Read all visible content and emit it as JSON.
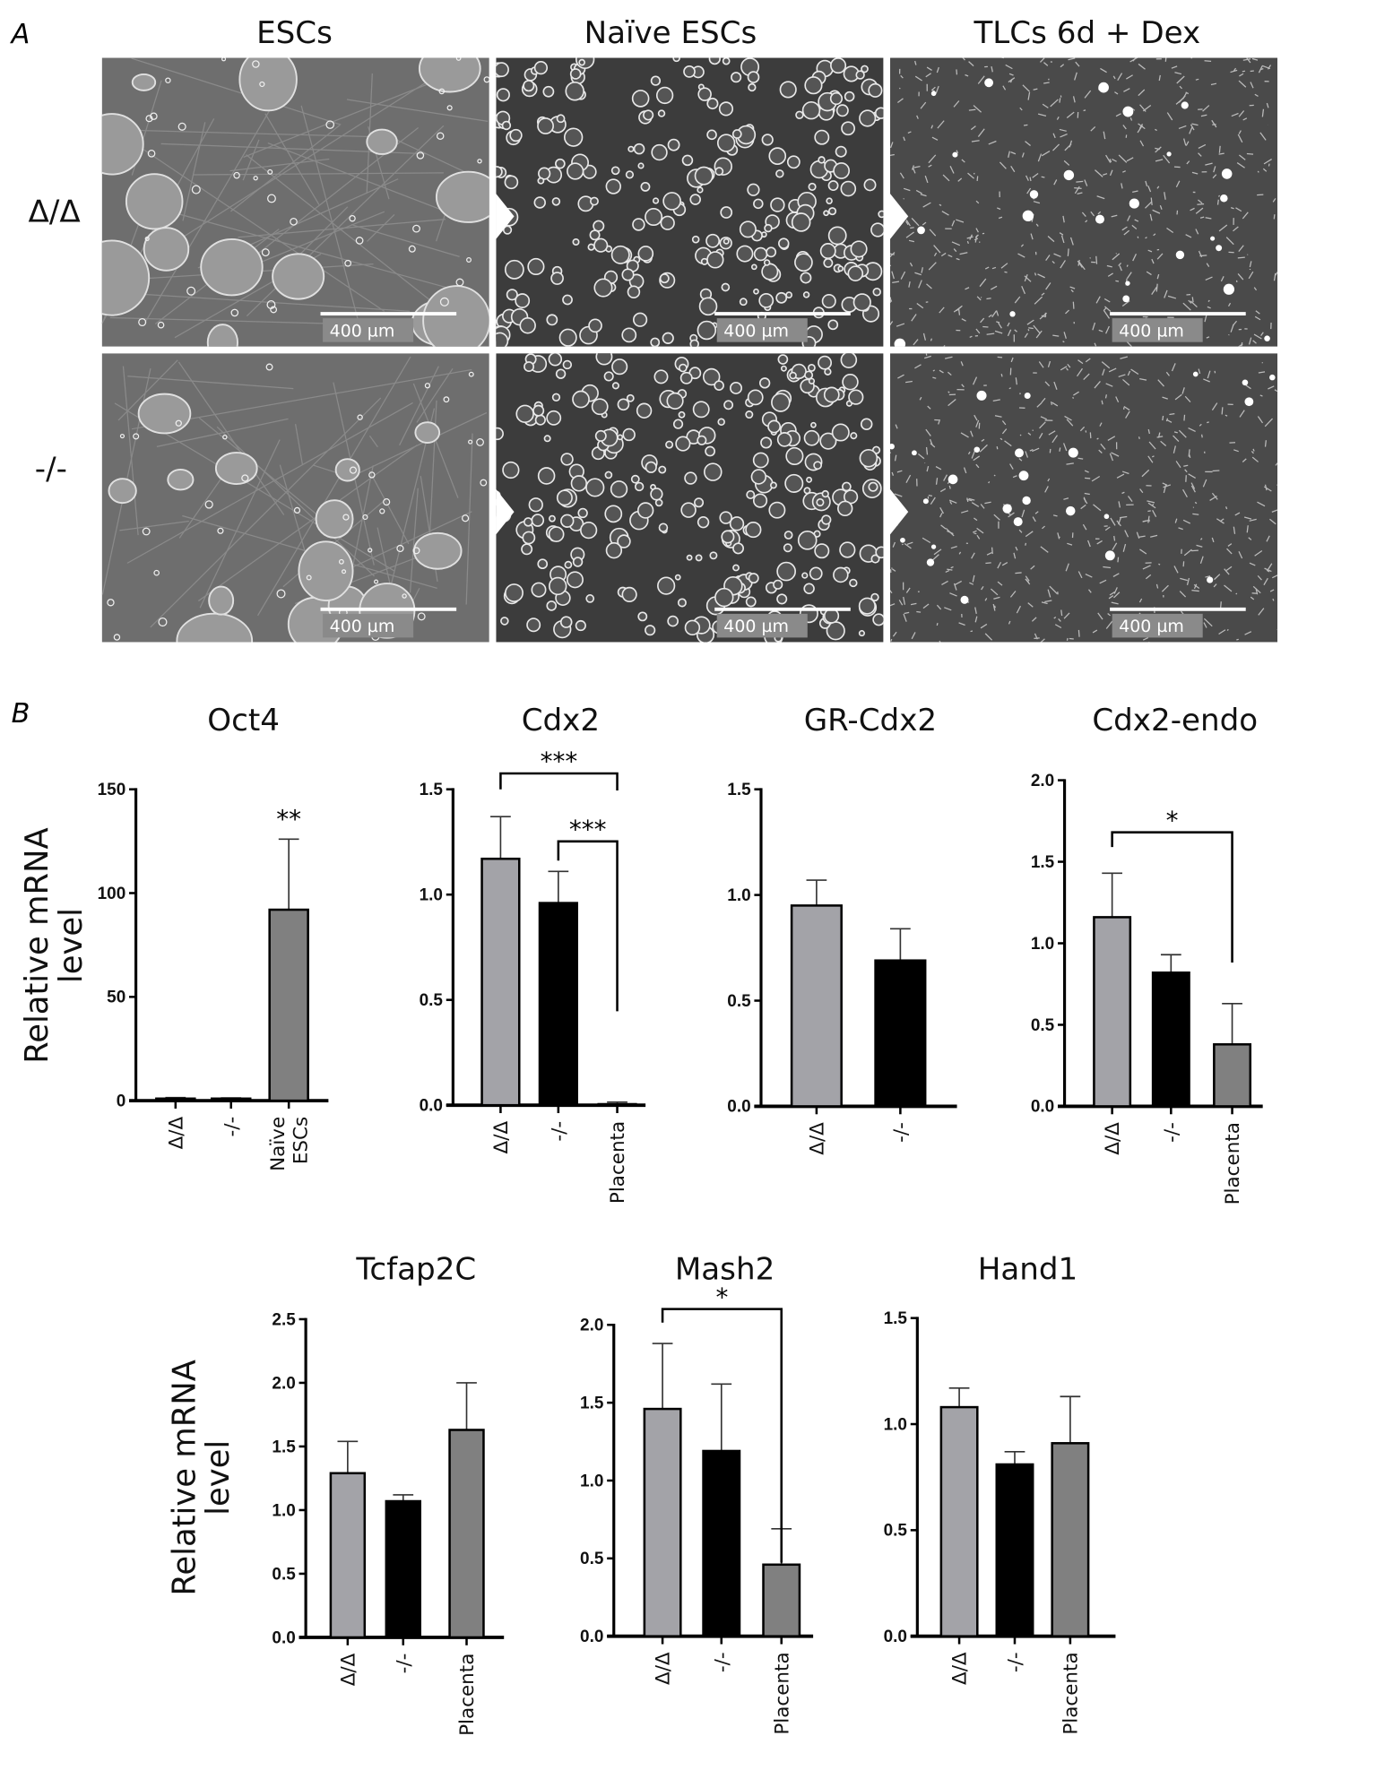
{
  "panel_a": {
    "label": "A",
    "columns": [
      "ESCs",
      "Naïve ESCs",
      "TLCs 6d + Dex"
    ],
    "rows": [
      "Δ/Δ",
      "-/-"
    ],
    "scale_bar": "400 µm"
  },
  "panel_b": {
    "label": "B",
    "ylabel_line1": "Relative mRNA",
    "ylabel_line2": "level"
  },
  "colors": {
    "delta": "#a3a3a8",
    "ko": "#000000",
    "other": "#808080"
  },
  "chart_data": [
    {
      "type": "bar",
      "title": "Oct4",
      "categories": [
        "Δ/Δ",
        "-/-",
        "Naïve ESCs"
      ],
      "values": [
        1,
        1,
        92
      ],
      "errors": [
        0.5,
        0.3,
        34
      ],
      "ylim": [
        0,
        150
      ],
      "yticks": [
        "0",
        "50",
        "100",
        "150"
      ],
      "ylabel": "Relative mRNA level",
      "significance": [
        {
          "target": 2,
          "label": "**"
        }
      ],
      "brackets": []
    },
    {
      "type": "bar",
      "title": "Cdx2",
      "categories": [
        "Δ/Δ",
        "-/-",
        "Placenta"
      ],
      "values": [
        1.17,
        0.96,
        0.005
      ],
      "errors": [
        0.2,
        0.15,
        0.01
      ],
      "ylim": [
        0,
        1.5
      ],
      "yticks": [
        "0.0",
        "0.5",
        "1.0",
        "1.5"
      ],
      "significance": [],
      "brackets": [
        {
          "from": 0,
          "to": 2,
          "label": "***"
        },
        {
          "from": 1,
          "to": 2,
          "label": "***"
        }
      ]
    },
    {
      "type": "bar",
      "title": "GR-Cdx2",
      "categories": [
        "Δ/Δ",
        "-/-"
      ],
      "values": [
        0.95,
        0.69
      ],
      "errors": [
        0.12,
        0.15
      ],
      "ylim": [
        0,
        1.5
      ],
      "yticks": [
        "0.0",
        "0.5",
        "1.0",
        "1.5"
      ],
      "significance": [],
      "brackets": []
    },
    {
      "type": "bar",
      "title": "Cdx2-endo",
      "categories": [
        "Δ/Δ",
        "-/-",
        "Placenta"
      ],
      "values": [
        1.16,
        0.82,
        0.38
      ],
      "errors": [
        0.27,
        0.11,
        0.25
      ],
      "ylim": [
        0,
        2.0
      ],
      "yticks": [
        "0.0",
        "0.5",
        "1.0",
        "1.5",
        "2.0"
      ],
      "significance": [],
      "brackets": [
        {
          "from": 0,
          "to": 2,
          "label": "*"
        }
      ]
    },
    {
      "type": "bar",
      "title": "Tcfap2C",
      "categories": [
        "Δ/Δ",
        "-/-",
        "Placenta"
      ],
      "values": [
        1.29,
        1.07,
        1.63
      ],
      "errors": [
        0.25,
        0.05,
        0.37
      ],
      "ylim": [
        0,
        2.5
      ],
      "yticks": [
        "0.0",
        "0.5",
        "1.0",
        "1.5",
        "2.0",
        "2.5"
      ],
      "ylabel": "Relative mRNA level",
      "significance": [],
      "brackets": []
    },
    {
      "type": "bar",
      "title": "Mash2",
      "categories": [
        "Δ/Δ",
        "-/-",
        "Placenta"
      ],
      "values": [
        1.46,
        1.19,
        0.46
      ],
      "errors": [
        0.42,
        0.43,
        0.23
      ],
      "ylim": [
        0,
        2.0
      ],
      "yticks": [
        "0.0",
        "0.5",
        "1.0",
        "1.5",
        "2.0"
      ],
      "significance": [],
      "brackets": [
        {
          "from": 0,
          "to": 2,
          "label": "*"
        }
      ]
    },
    {
      "type": "bar",
      "title": "Hand1",
      "categories": [
        "Δ/Δ",
        "-/-",
        "Placenta"
      ],
      "values": [
        1.08,
        0.81,
        0.91
      ],
      "errors": [
        0.09,
        0.06,
        0.22
      ],
      "ylim": [
        0,
        1.5
      ],
      "yticks": [
        "0.0",
        "0.5",
        "1.0",
        "1.5"
      ],
      "significance": [],
      "brackets": []
    }
  ]
}
